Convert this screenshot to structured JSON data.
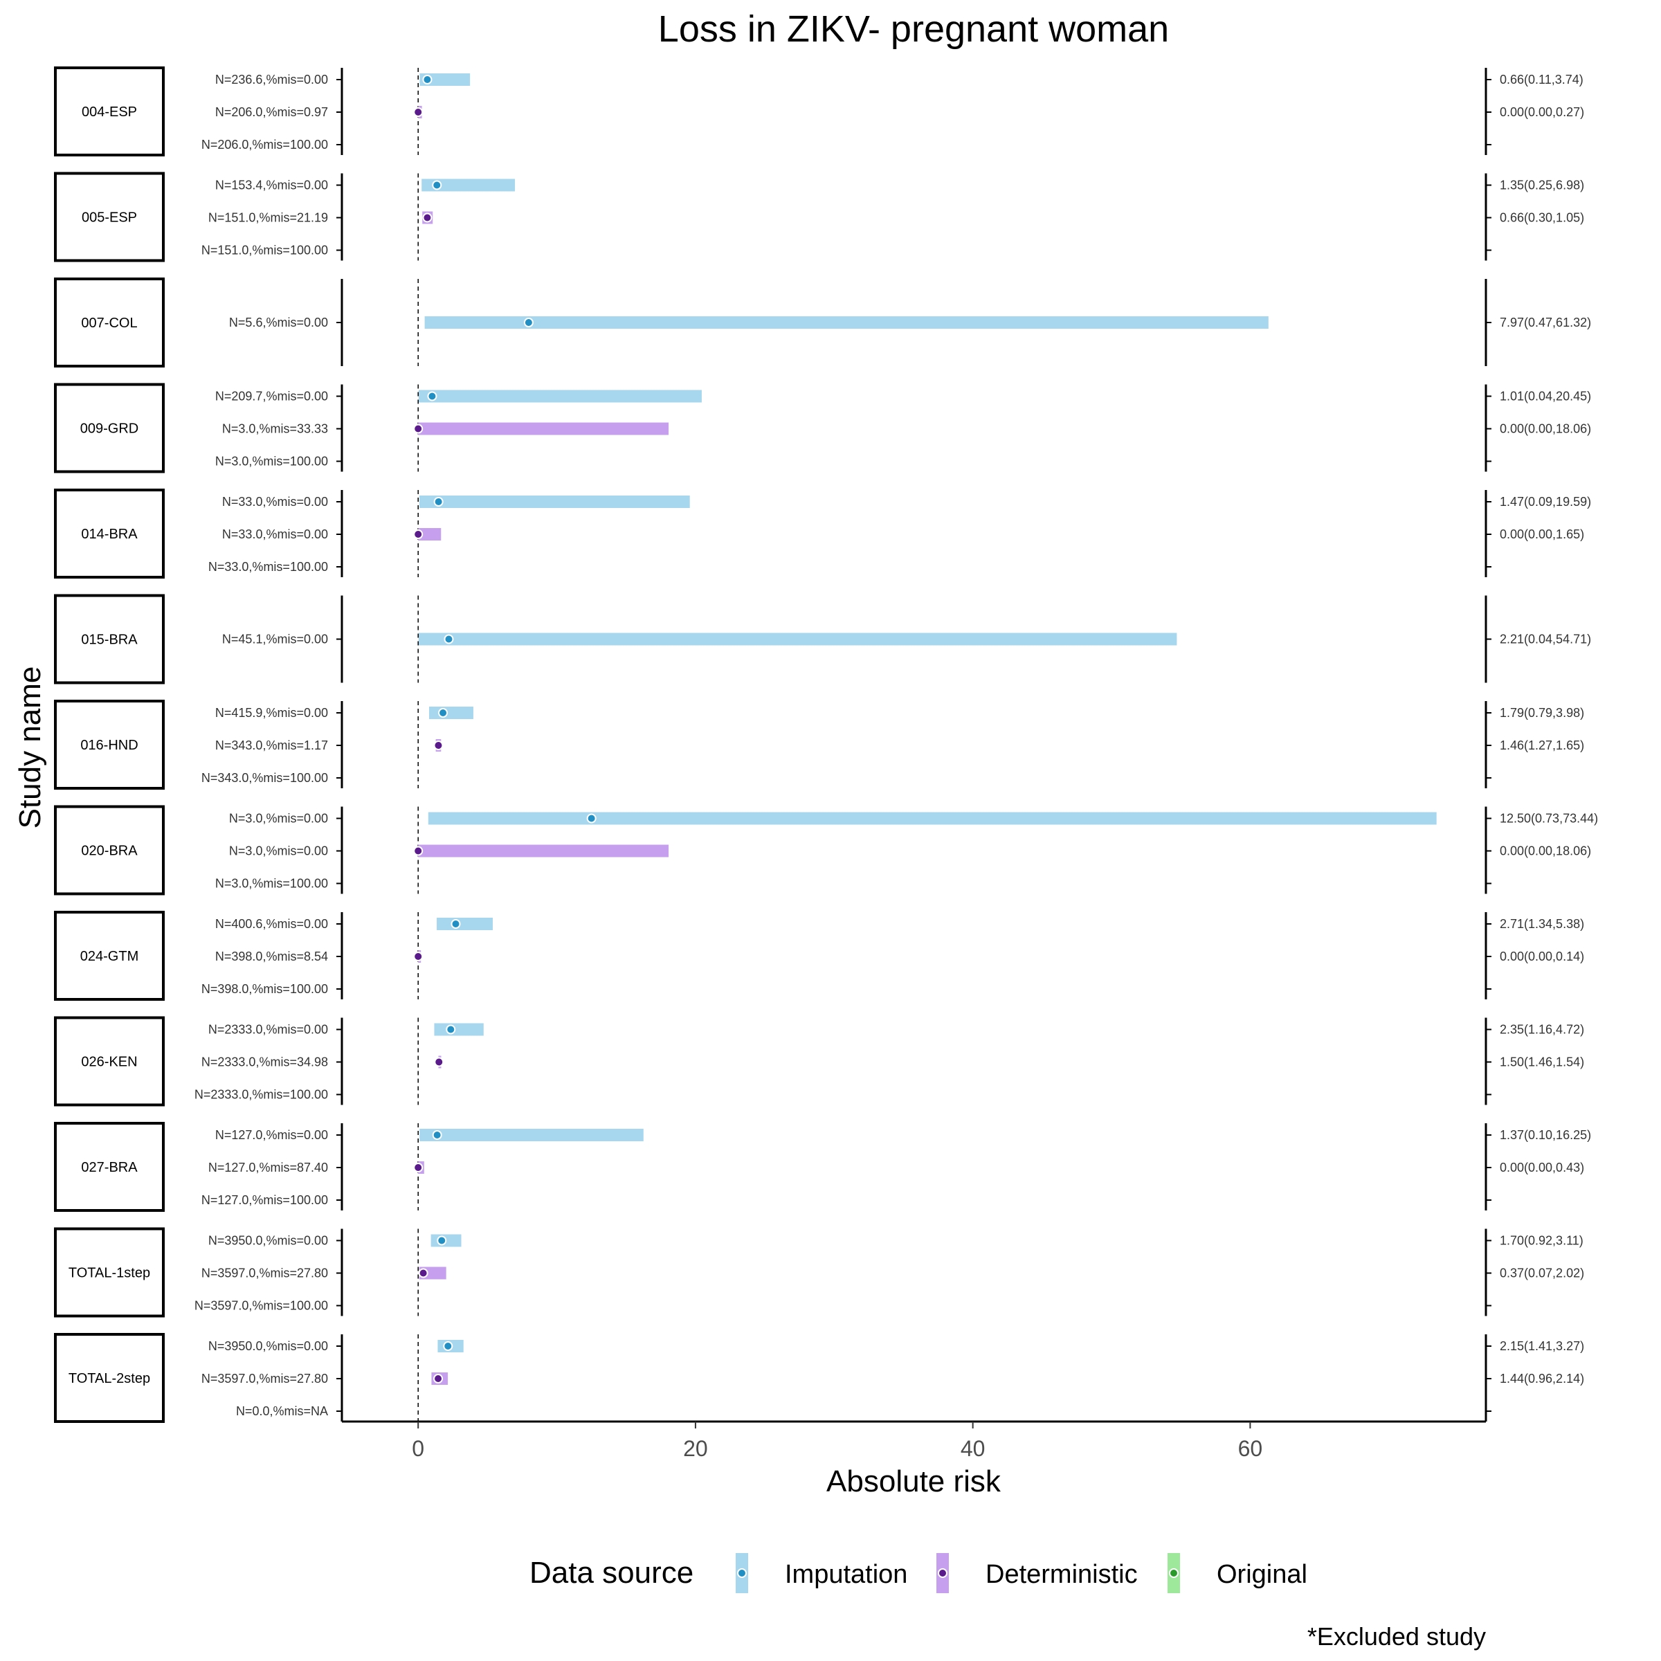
{
  "chart_data": {
    "type": "forest",
    "title": "Loss in ZIKV- pregnant woman",
    "xlabel": "Absolute risk",
    "ylabel": "Study name",
    "xlim": [
      -5.5,
      77.0
    ],
    "xticks": [
      0,
      20,
      40,
      60
    ],
    "reference_line_x": 0,
    "legend": {
      "title": "Data source",
      "placement": "bottom",
      "items": [
        {
          "name": "Imputation",
          "bar_color": "#a6d7ef",
          "point_color": "#1f8fc4"
        },
        {
          "name": "Deterministic",
          "bar_color": "#c6a0ee",
          "point_color": "#5a1a8c"
        },
        {
          "name": "Original",
          "bar_color": "#9ee89b",
          "point_color": "#2a9a2a"
        }
      ]
    },
    "note": "*Excluded study",
    "studies": [
      {
        "name": "004-ESP",
        "rows": [
          {
            "label": "N=236.6,%mis=0.00",
            "source": "Imputation",
            "est": 0.66,
            "lo": 0.11,
            "hi": 3.74,
            "ci_text": "0.66(0.11,3.74)"
          },
          {
            "label": "N=206.0,%mis=0.97",
            "source": "Deterministic",
            "est": 0.0,
            "lo": 0.0,
            "hi": 0.27,
            "ci_text": "0.00(0.00,0.27)"
          },
          {
            "label": "N=206.0,%mis=100.00",
            "source": null,
            "est": null,
            "lo": null,
            "hi": null,
            "ci_text": ""
          }
        ]
      },
      {
        "name": "005-ESP",
        "rows": [
          {
            "label": "N=153.4,%mis=0.00",
            "source": "Imputation",
            "est": 1.35,
            "lo": 0.25,
            "hi": 6.98,
            "ci_text": "1.35(0.25,6.98)"
          },
          {
            "label": "N=151.0,%mis=21.19",
            "source": "Deterministic",
            "est": 0.66,
            "lo": 0.3,
            "hi": 1.05,
            "ci_text": "0.66(0.30,1.05)"
          },
          {
            "label": "N=151.0,%mis=100.00",
            "source": null,
            "est": null,
            "lo": null,
            "hi": null,
            "ci_text": ""
          }
        ]
      },
      {
        "name": "007-COL",
        "rows": [
          {
            "label": "N=5.6,%mis=0.00",
            "source": "Imputation",
            "est": 7.97,
            "lo": 0.47,
            "hi": 61.32,
            "ci_text": "7.97(0.47,61.32)"
          }
        ]
      },
      {
        "name": "009-GRD",
        "rows": [
          {
            "label": "N=209.7,%mis=0.00",
            "source": "Imputation",
            "est": 1.01,
            "lo": 0.04,
            "hi": 20.45,
            "ci_text": "1.01(0.04,20.45)"
          },
          {
            "label": "N=3.0,%mis=33.33",
            "source": "Deterministic",
            "est": 0.0,
            "lo": 0.0,
            "hi": 18.06,
            "ci_text": "0.00(0.00,18.06)"
          },
          {
            "label": "N=3.0,%mis=100.00",
            "source": null,
            "est": null,
            "lo": null,
            "hi": null,
            "ci_text": ""
          }
        ]
      },
      {
        "name": "014-BRA",
        "rows": [
          {
            "label": "N=33.0,%mis=0.00",
            "source": "Imputation",
            "est": 1.47,
            "lo": 0.09,
            "hi": 19.59,
            "ci_text": "1.47(0.09,19.59)"
          },
          {
            "label": "N=33.0,%mis=0.00",
            "source": "Deterministic",
            "est": 0.0,
            "lo": 0.0,
            "hi": 1.65,
            "ci_text": "0.00(0.00,1.65)"
          },
          {
            "label": "N=33.0,%mis=100.00",
            "source": null,
            "est": null,
            "lo": null,
            "hi": null,
            "ci_text": ""
          }
        ]
      },
      {
        "name": "015-BRA",
        "rows": [
          {
            "label": "N=45.1,%mis=0.00",
            "source": "Imputation",
            "est": 2.21,
            "lo": 0.04,
            "hi": 54.71,
            "ci_text": "2.21(0.04,54.71)"
          }
        ]
      },
      {
        "name": "016-HND",
        "rows": [
          {
            "label": "N=415.9,%mis=0.00",
            "source": "Imputation",
            "est": 1.79,
            "lo": 0.79,
            "hi": 3.98,
            "ci_text": "1.79(0.79,3.98)"
          },
          {
            "label": "N=343.0,%mis=1.17",
            "source": "Deterministic",
            "est": 1.46,
            "lo": 1.27,
            "hi": 1.65,
            "ci_text": "1.46(1.27,1.65)"
          },
          {
            "label": "N=343.0,%mis=100.00",
            "source": null,
            "est": null,
            "lo": null,
            "hi": null,
            "ci_text": ""
          }
        ]
      },
      {
        "name": "020-BRA",
        "rows": [
          {
            "label": "N=3.0,%mis=0.00",
            "source": "Imputation",
            "est": 12.5,
            "lo": 0.73,
            "hi": 73.44,
            "ci_text": "12.50(0.73,73.44)"
          },
          {
            "label": "N=3.0,%mis=0.00",
            "source": "Deterministic",
            "est": 0.0,
            "lo": 0.0,
            "hi": 18.06,
            "ci_text": "0.00(0.00,18.06)"
          },
          {
            "label": "N=3.0,%mis=100.00",
            "source": null,
            "est": null,
            "lo": null,
            "hi": null,
            "ci_text": ""
          }
        ]
      },
      {
        "name": "024-GTM",
        "rows": [
          {
            "label": "N=400.6,%mis=0.00",
            "source": "Imputation",
            "est": 2.71,
            "lo": 1.34,
            "hi": 5.38,
            "ci_text": "2.71(1.34,5.38)"
          },
          {
            "label": "N=398.0,%mis=8.54",
            "source": "Deterministic",
            "est": 0.0,
            "lo": 0.0,
            "hi": 0.14,
            "ci_text": "0.00(0.00,0.14)"
          },
          {
            "label": "N=398.0,%mis=100.00",
            "source": null,
            "est": null,
            "lo": null,
            "hi": null,
            "ci_text": ""
          }
        ]
      },
      {
        "name": "026-KEN",
        "rows": [
          {
            "label": "N=2333.0,%mis=0.00",
            "source": "Imputation",
            "est": 2.35,
            "lo": 1.16,
            "hi": 4.72,
            "ci_text": "2.35(1.16,4.72)"
          },
          {
            "label": "N=2333.0,%mis=34.98",
            "source": "Deterministic",
            "est": 1.5,
            "lo": 1.46,
            "hi": 1.54,
            "ci_text": "1.50(1.46,1.54)"
          },
          {
            "label": "N=2333.0,%mis=100.00",
            "source": null,
            "est": null,
            "lo": null,
            "hi": null,
            "ci_text": ""
          }
        ]
      },
      {
        "name": "027-BRA",
        "rows": [
          {
            "label": "N=127.0,%mis=0.00",
            "source": "Imputation",
            "est": 1.37,
            "lo": 0.1,
            "hi": 16.25,
            "ci_text": "1.37(0.10,16.25)"
          },
          {
            "label": "N=127.0,%mis=87.40",
            "source": "Deterministic",
            "est": 0.0,
            "lo": 0.0,
            "hi": 0.43,
            "ci_text": "0.00(0.00,0.43)"
          },
          {
            "label": "N=127.0,%mis=100.00",
            "source": null,
            "est": null,
            "lo": null,
            "hi": null,
            "ci_text": ""
          }
        ]
      },
      {
        "name": "TOTAL-1step",
        "rows": [
          {
            "label": "N=3950.0,%mis=0.00",
            "source": "Imputation",
            "est": 1.7,
            "lo": 0.92,
            "hi": 3.11,
            "ci_text": "1.70(0.92,3.11)"
          },
          {
            "label": "N=3597.0,%mis=27.80",
            "source": "Deterministic",
            "est": 0.37,
            "lo": 0.07,
            "hi": 2.02,
            "ci_text": "0.37(0.07,2.02)"
          },
          {
            "label": "N=3597.0,%mis=100.00",
            "source": null,
            "est": null,
            "lo": null,
            "hi": null,
            "ci_text": ""
          }
        ]
      },
      {
        "name": "TOTAL-2step",
        "rows": [
          {
            "label": "N=3950.0,%mis=0.00",
            "source": "Imputation",
            "est": 2.15,
            "lo": 1.41,
            "hi": 3.27,
            "ci_text": "2.15(1.41,3.27)"
          },
          {
            "label": "N=3597.0,%mis=27.80",
            "source": "Deterministic",
            "est": 1.44,
            "lo": 0.96,
            "hi": 2.14,
            "ci_text": "1.44(0.96,2.14)"
          },
          {
            "label": "N=0.0,%mis=NA",
            "source": null,
            "est": null,
            "lo": null,
            "hi": null,
            "ci_text": ""
          }
        ]
      }
    ]
  }
}
